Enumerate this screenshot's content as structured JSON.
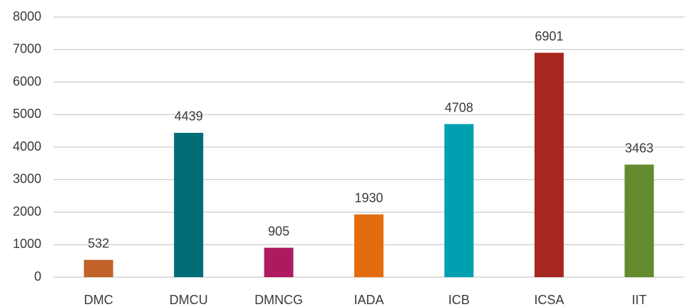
{
  "chart_data": {
    "type": "bar",
    "categories": [
      "DMC",
      "DMCU",
      "DMNCG",
      "IADA",
      "ICB",
      "ICSA",
      "IIT"
    ],
    "values": [
      532,
      4439,
      905,
      1930,
      4708,
      6901,
      3463
    ],
    "colors": [
      "#c0622a",
      "#006d77",
      "#ad1a5f",
      "#e36c0e",
      "#00a0b0",
      "#a6271f",
      "#648b2e"
    ],
    "ylim": [
      0,
      8000
    ],
    "yticks": [
      0,
      1000,
      2000,
      3000,
      4000,
      5000,
      6000,
      7000,
      8000
    ],
    "grid": true
  }
}
